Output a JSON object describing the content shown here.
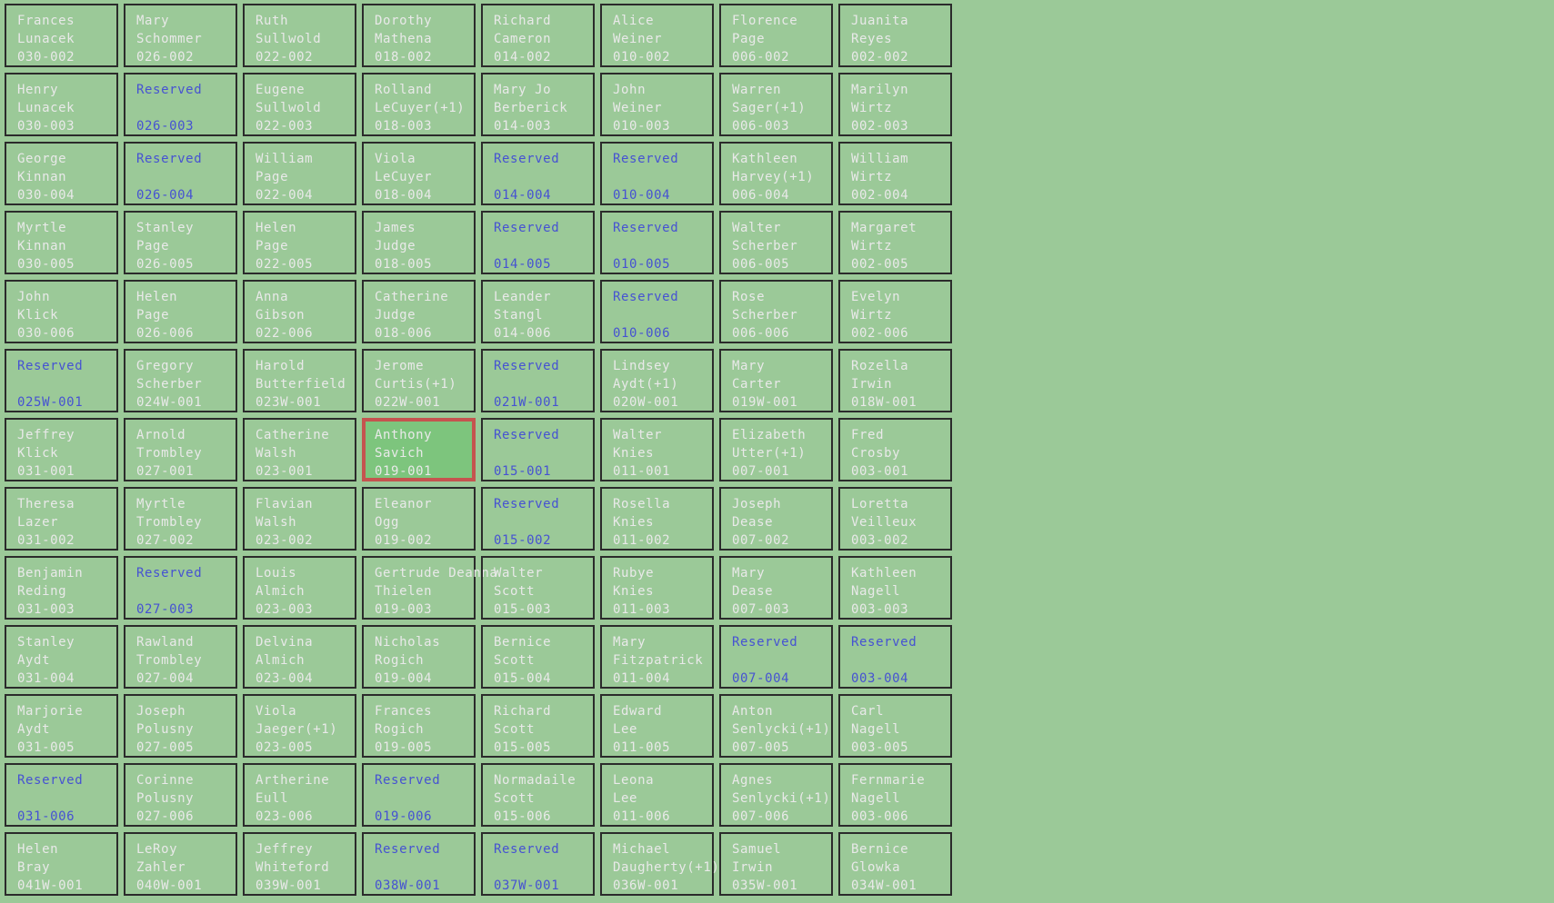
{
  "colors": {
    "page_bg": "#9bc998",
    "cell_border": "#2b2b2b",
    "name_text": "#e9e9e9",
    "reserved_text": "#4652d2",
    "selected_cell_bg": "#7dc57d",
    "selected_cell_border": "#c5544f"
  },
  "grid": {
    "rows": [
      [
        {
          "line1": "Frances",
          "line2": "Lunacek",
          "num": "030-002",
          "state": "occupied"
        },
        {
          "line1": "Mary",
          "line2": "Schommer",
          "num": "026-002",
          "state": "occupied"
        },
        {
          "line1": "Ruth",
          "line2": "Sullwold",
          "num": "022-002",
          "state": "occupied"
        },
        {
          "line1": "Dorothy",
          "line2": "Mathena",
          "num": "018-002",
          "state": "occupied"
        },
        {
          "line1": "Richard",
          "line2": "Cameron",
          "num": "014-002",
          "state": "occupied"
        },
        {
          "line1": "Alice",
          "line2": "Weiner",
          "num": "010-002",
          "state": "occupied"
        },
        {
          "line1": "Florence",
          "line2": "Page",
          "num": "006-002",
          "state": "occupied"
        },
        {
          "line1": "Juanita",
          "line2": "Reyes",
          "num": "002-002",
          "state": "occupied"
        }
      ],
      [
        {
          "line1": "Henry",
          "line2": "Lunacek",
          "num": "030-003",
          "state": "occupied"
        },
        {
          "line1": "Reserved",
          "line2": "",
          "num": "026-003",
          "state": "reserved"
        },
        {
          "line1": "Eugene",
          "line2": "Sullwold",
          "num": "022-003",
          "state": "occupied"
        },
        {
          "line1": "Rolland",
          "line2": "LeCuyer(+1)",
          "num": "018-003",
          "state": "occupied"
        },
        {
          "line1": "Mary Jo",
          "line2": "Berberick",
          "num": "014-003",
          "state": "occupied"
        },
        {
          "line1": "John",
          "line2": "Weiner",
          "num": "010-003",
          "state": "occupied"
        },
        {
          "line1": "Warren",
          "line2": "Sager(+1)",
          "num": "006-003",
          "state": "occupied"
        },
        {
          "line1": "Marilyn",
          "line2": "Wirtz",
          "num": "002-003",
          "state": "occupied"
        }
      ],
      [
        {
          "line1": "George",
          "line2": "Kinnan",
          "num": "030-004",
          "state": "occupied"
        },
        {
          "line1": "Reserved",
          "line2": "",
          "num": "026-004",
          "state": "reserved"
        },
        {
          "line1": "William",
          "line2": "Page",
          "num": "022-004",
          "state": "occupied"
        },
        {
          "line1": "Viola",
          "line2": "LeCuyer",
          "num": "018-004",
          "state": "occupied"
        },
        {
          "line1": "Reserved",
          "line2": "",
          "num": "014-004",
          "state": "reserved"
        },
        {
          "line1": "Reserved",
          "line2": "",
          "num": "010-004",
          "state": "reserved"
        },
        {
          "line1": "Kathleen",
          "line2": "Harvey(+1)",
          "num": "006-004",
          "state": "occupied"
        },
        {
          "line1": "William",
          "line2": "Wirtz",
          "num": "002-004",
          "state": "occupied"
        }
      ],
      [
        {
          "line1": "Myrtle",
          "line2": "Kinnan",
          "num": "030-005",
          "state": "occupied"
        },
        {
          "line1": "Stanley",
          "line2": "Page",
          "num": "026-005",
          "state": "occupied"
        },
        {
          "line1": "Helen",
          "line2": "Page",
          "num": "022-005",
          "state": "occupied"
        },
        {
          "line1": "James",
          "line2": "Judge",
          "num": "018-005",
          "state": "occupied"
        },
        {
          "line1": "Reserved",
          "line2": "",
          "num": "014-005",
          "state": "reserved"
        },
        {
          "line1": "Reserved",
          "line2": "",
          "num": "010-005",
          "state": "reserved"
        },
        {
          "line1": "Walter",
          "line2": "Scherber",
          "num": "006-005",
          "state": "occupied"
        },
        {
          "line1": "Margaret",
          "line2": "Wirtz",
          "num": "002-005",
          "state": "occupied"
        }
      ],
      [
        {
          "line1": "John",
          "line2": "Klick",
          "num": "030-006",
          "state": "occupied"
        },
        {
          "line1": "Helen",
          "line2": "Page",
          "num": "026-006",
          "state": "occupied"
        },
        {
          "line1": "Anna",
          "line2": "Gibson",
          "num": "022-006",
          "state": "occupied"
        },
        {
          "line1": "Catherine",
          "line2": "Judge",
          "num": "018-006",
          "state": "occupied"
        },
        {
          "line1": "Leander",
          "line2": "Stangl",
          "num": "014-006",
          "state": "occupied"
        },
        {
          "line1": "Reserved",
          "line2": "",
          "num": "010-006",
          "state": "reserved"
        },
        {
          "line1": "Rose",
          "line2": "Scherber",
          "num": "006-006",
          "state": "occupied"
        },
        {
          "line1": "Evelyn",
          "line2": "Wirtz",
          "num": "002-006",
          "state": "occupied"
        }
      ],
      [
        {
          "line1": "Reserved",
          "line2": "",
          "num": "025W-001",
          "state": "reserved"
        },
        {
          "line1": "Gregory",
          "line2": "Scherber",
          "num": "024W-001",
          "state": "occupied"
        },
        {
          "line1": "Harold",
          "line2": "Butterfield",
          "num": "023W-001",
          "state": "occupied"
        },
        {
          "line1": "Jerome",
          "line2": "Curtis(+1)",
          "num": "022W-001",
          "state": "occupied"
        },
        {
          "line1": "Reserved",
          "line2": "",
          "num": "021W-001",
          "state": "reserved"
        },
        {
          "line1": "Lindsey",
          "line2": "Aydt(+1)",
          "num": "020W-001",
          "state": "occupied"
        },
        {
          "line1": "Mary",
          "line2": "Carter",
          "num": "019W-001",
          "state": "occupied"
        },
        {
          "line1": "Rozella",
          "line2": "Irwin",
          "num": "018W-001",
          "state": "occupied"
        }
      ],
      [
        {
          "line1": "Jeffrey",
          "line2": "Klick",
          "num": "031-001",
          "state": "occupied"
        },
        {
          "line1": "Arnold",
          "line2": "Trombley",
          "num": "027-001",
          "state": "occupied"
        },
        {
          "line1": "Catherine",
          "line2": "Walsh",
          "num": "023-001",
          "state": "occupied"
        },
        {
          "line1": "Anthony",
          "line2": "Savich",
          "num": "019-001",
          "state": "selected"
        },
        {
          "line1": "Reserved",
          "line2": "",
          "num": "015-001",
          "state": "reserved"
        },
        {
          "line1": "Walter",
          "line2": "Knies",
          "num": "011-001",
          "state": "occupied"
        },
        {
          "line1": "Elizabeth",
          "line2": "Utter(+1)",
          "num": "007-001",
          "state": "occupied"
        },
        {
          "line1": "Fred",
          "line2": "Crosby",
          "num": "003-001",
          "state": "occupied"
        }
      ],
      [
        {
          "line1": "Theresa",
          "line2": "Lazer",
          "num": "031-002",
          "state": "occupied"
        },
        {
          "line1": "Myrtle",
          "line2": "Trombley",
          "num": "027-002",
          "state": "occupied"
        },
        {
          "line1": "Flavian",
          "line2": "Walsh",
          "num": "023-002",
          "state": "occupied"
        },
        {
          "line1": "Eleanor",
          "line2": "Ogg",
          "num": "019-002",
          "state": "occupied"
        },
        {
          "line1": "Reserved",
          "line2": "",
          "num": "015-002",
          "state": "reserved"
        },
        {
          "line1": "Rosella",
          "line2": "Knies",
          "num": "011-002",
          "state": "occupied"
        },
        {
          "line1": "Joseph",
          "line2": "Dease",
          "num": "007-002",
          "state": "occupied"
        },
        {
          "line1": "Loretta",
          "line2": "Veilleux",
          "num": "003-002",
          "state": "occupied"
        }
      ],
      [
        {
          "line1": "Benjamin",
          "line2": "Reding",
          "num": "031-003",
          "state": "occupied"
        },
        {
          "line1": "Reserved",
          "line2": "",
          "num": "027-003",
          "state": "reserved"
        },
        {
          "line1": "Louis",
          "line2": "Almich",
          "num": "023-003",
          "state": "occupied"
        },
        {
          "line1": "Gertrude Deanna",
          "line2": "Thielen",
          "num": "019-003",
          "state": "occupied"
        },
        {
          "line1": "Walter",
          "line2": "Scott",
          "num": "015-003",
          "state": "occupied"
        },
        {
          "line1": "Rubye",
          "line2": "Knies",
          "num": "011-003",
          "state": "occupied"
        },
        {
          "line1": "Mary",
          "line2": "Dease",
          "num": "007-003",
          "state": "occupied"
        },
        {
          "line1": "Kathleen",
          "line2": "Nagell",
          "num": "003-003",
          "state": "occupied"
        }
      ],
      [
        {
          "line1": "Stanley",
          "line2": "Aydt",
          "num": "031-004",
          "state": "occupied"
        },
        {
          "line1": "Rawland",
          "line2": "Trombley",
          "num": "027-004",
          "state": "occupied"
        },
        {
          "line1": "Delvina",
          "line2": "Almich",
          "num": "023-004",
          "state": "occupied"
        },
        {
          "line1": "Nicholas",
          "line2": "Rogich",
          "num": "019-004",
          "state": "occupied"
        },
        {
          "line1": "Bernice",
          "line2": "Scott",
          "num": "015-004",
          "state": "occupied"
        },
        {
          "line1": "Mary",
          "line2": "Fitzpatrick",
          "num": "011-004",
          "state": "occupied"
        },
        {
          "line1": "Reserved",
          "line2": "",
          "num": "007-004",
          "state": "reserved"
        },
        {
          "line1": "Reserved",
          "line2": "",
          "num": "003-004",
          "state": "reserved"
        }
      ],
      [
        {
          "line1": "Marjorie",
          "line2": "Aydt",
          "num": "031-005",
          "state": "occupied"
        },
        {
          "line1": "Joseph",
          "line2": "Polusny",
          "num": "027-005",
          "state": "occupied"
        },
        {
          "line1": "Viola",
          "line2": "Jaeger(+1)",
          "num": "023-005",
          "state": "occupied"
        },
        {
          "line1": "Frances",
          "line2": "Rogich",
          "num": "019-005",
          "state": "occupied"
        },
        {
          "line1": "Richard",
          "line2": "Scott",
          "num": "015-005",
          "state": "occupied"
        },
        {
          "line1": "Edward",
          "line2": "Lee",
          "num": "011-005",
          "state": "occupied"
        },
        {
          "line1": "Anton",
          "line2": "Senlycki(+1)",
          "num": "007-005",
          "state": "occupied"
        },
        {
          "line1": "Carl",
          "line2": "Nagell",
          "num": "003-005",
          "state": "occupied"
        }
      ],
      [
        {
          "line1": "Reserved",
          "line2": "",
          "num": "031-006",
          "state": "reserved"
        },
        {
          "line1": "Corinne",
          "line2": "Polusny",
          "num": "027-006",
          "state": "occupied"
        },
        {
          "line1": "Artherine",
          "line2": "Eull",
          "num": "023-006",
          "state": "occupied"
        },
        {
          "line1": "Reserved",
          "line2": "",
          "num": "019-006",
          "state": "reserved"
        },
        {
          "line1": "Normadaile",
          "line2": "Scott",
          "num": "015-006",
          "state": "occupied"
        },
        {
          "line1": "Leona",
          "line2": "Lee",
          "num": "011-006",
          "state": "occupied"
        },
        {
          "line1": "Agnes",
          "line2": "Senlycki(+1)",
          "num": "007-006",
          "state": "occupied"
        },
        {
          "line1": "Fernmarie",
          "line2": "Nagell",
          "num": "003-006",
          "state": "occupied"
        }
      ],
      [
        {
          "line1": "Helen",
          "line2": "Bray",
          "num": "041W-001",
          "state": "occupied"
        },
        {
          "line1": "LeRoy",
          "line2": "Zahler",
          "num": "040W-001",
          "state": "occupied"
        },
        {
          "line1": "Jeffrey",
          "line2": "Whiteford",
          "num": "039W-001",
          "state": "occupied"
        },
        {
          "line1": "Reserved",
          "line2": "",
          "num": "038W-001",
          "state": "reserved"
        },
        {
          "line1": "Reserved",
          "line2": "",
          "num": "037W-001",
          "state": "reserved"
        },
        {
          "line1": "Michael",
          "line2": "Daugherty(+1)",
          "num": "036W-001",
          "state": "occupied"
        },
        {
          "line1": "Samuel",
          "line2": "Irwin",
          "num": "035W-001",
          "state": "occupied"
        },
        {
          "line1": "Bernice",
          "line2": "Glowka",
          "num": "034W-001",
          "state": "occupied"
        }
      ]
    ]
  }
}
